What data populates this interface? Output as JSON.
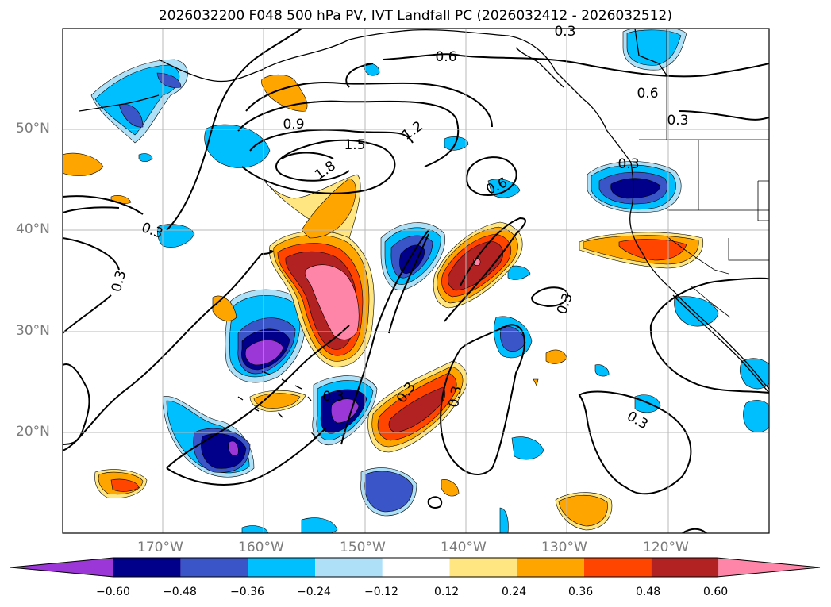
{
  "title": "2026032200 F048 500 hPa PV, IVT Landfall PC (2026032412 - 2026032512)",
  "lat_labels": [
    "50°N",
    "40°N",
    "30°N",
    "20°N"
  ],
  "lon_labels": [
    "170°W",
    "160°W",
    "150°W",
    "140°W",
    "130°W",
    "120°W"
  ],
  "contour_labels": [
    "0.3",
    "0.6",
    "0.6",
    "0.3",
    "0.9",
    "1.5",
    "1.2",
    "1.8",
    "0.6",
    "0.3",
    "0.3",
    "0.3",
    "0.3",
    "0.3",
    "0.3",
    "0.3",
    "0.3"
  ],
  "colorbar": {
    "ticks": [
      "−0.60",
      "−0.48",
      "−0.36",
      "−0.24",
      "−0.12",
      "0.12",
      "0.24",
      "0.36",
      "0.48",
      "0.60"
    ],
    "colors": [
      "#9a37d6",
      "#00008b",
      "#3a55c8",
      "#00bfff",
      "#aee0f7",
      "#ffffff",
      "#ffe680",
      "#ffa500",
      "#ff4500",
      "#b22222",
      "#ff85a8"
    ]
  }
}
